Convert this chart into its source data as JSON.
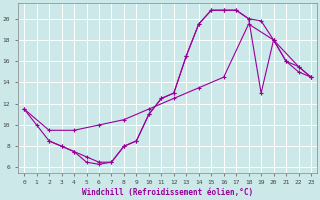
{
  "xlabel": "Windchill (Refroidissement éolien,°C)",
  "bg_color": "#cce8e8",
  "line_color": "#990099",
  "grid_color": "#aadddd",
  "xlim": [
    -0.5,
    23.5
  ],
  "ylim": [
    5.5,
    21.5
  ],
  "xticks": [
    0,
    1,
    2,
    3,
    4,
    5,
    6,
    7,
    8,
    9,
    10,
    11,
    12,
    13,
    14,
    15,
    16,
    17,
    18,
    19,
    20,
    21,
    22,
    23
  ],
  "yticks": [
    6,
    8,
    10,
    12,
    14,
    16,
    18,
    20
  ],
  "curve1_x": [
    0,
    1,
    2,
    3,
    4,
    5,
    6,
    7,
    8,
    9,
    10,
    11,
    12,
    13,
    14,
    15,
    16,
    17,
    18,
    19,
    20,
    21,
    22,
    23
  ],
  "curve1_y": [
    11.5,
    10.0,
    8.5,
    8.0,
    7.5,
    6.5,
    6.3,
    6.5,
    8.0,
    8.5,
    11.0,
    12.5,
    13.0,
    16.5,
    19.5,
    20.8,
    20.8,
    20.8,
    20.0,
    19.8,
    18.0,
    16.0,
    15.0,
    14.5
  ],
  "curve2_x": [
    0,
    2,
    4,
    6,
    8,
    10,
    12,
    14,
    16,
    18,
    20,
    22,
    23
  ],
  "curve2_y": [
    11.5,
    9.5,
    9.5,
    10.0,
    10.5,
    11.5,
    12.5,
    13.5,
    14.5,
    19.5,
    18.0,
    15.5,
    14.5
  ],
  "curve3_x": [
    2,
    3,
    4,
    5,
    6,
    7,
    8,
    9,
    10,
    11,
    12,
    13,
    14,
    15,
    16,
    17,
    18,
    19,
    20,
    21,
    22,
    23
  ],
  "curve3_y": [
    8.5,
    8.0,
    7.5,
    7.0,
    6.5,
    6.5,
    8.0,
    8.5,
    11.0,
    12.5,
    13.0,
    16.5,
    19.5,
    20.8,
    20.8,
    20.8,
    20.0,
    13.0,
    18.0,
    16.0,
    15.5,
    14.5
  ]
}
